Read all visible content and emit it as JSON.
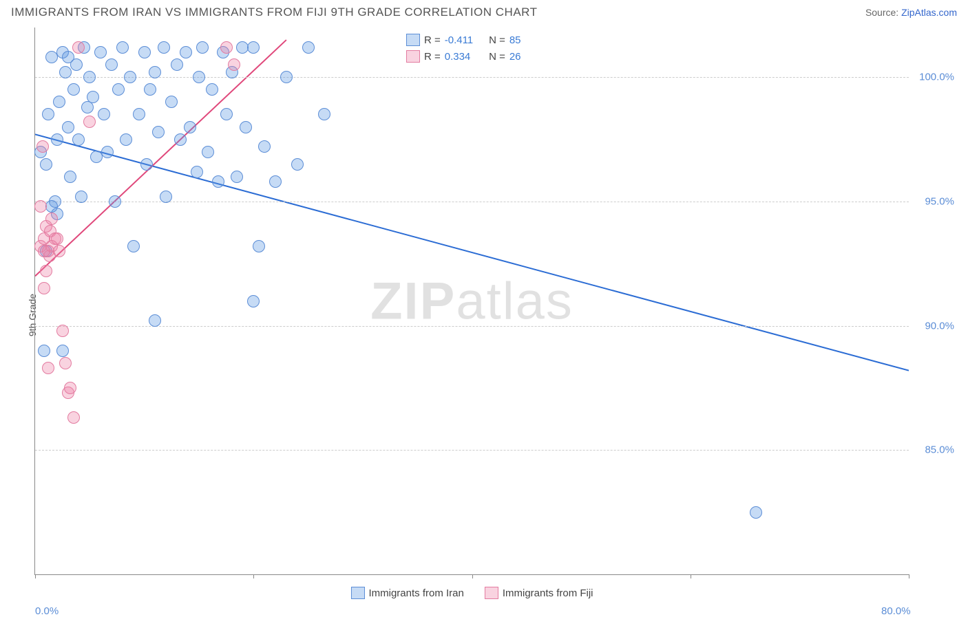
{
  "title": "IMMIGRANTS FROM IRAN VS IMMIGRANTS FROM FIJI 9TH GRADE CORRELATION CHART",
  "source_prefix": "Source: ",
  "source_link": "ZipAtlas.com",
  "ylabel": "9th Grade",
  "watermark_bold": "ZIP",
  "watermark_rest": "atlas",
  "chart": {
    "type": "scatter",
    "xlim": [
      0,
      80
    ],
    "ylim": [
      80,
      102
    ],
    "x_ticks": [
      0,
      20,
      40,
      60,
      80
    ],
    "x_tick_labels": [
      "0.0%",
      "",
      "",
      "",
      "80.0%"
    ],
    "y_gridlines": [
      85,
      90,
      95,
      100
    ],
    "y_tick_labels": [
      "85.0%",
      "90.0%",
      "95.0%",
      "100.0%"
    ],
    "background_color": "#ffffff",
    "grid_color": "#cccccc",
    "axis_color": "#888888",
    "marker_radius": 9,
    "marker_opacity": 0.55,
    "series": [
      {
        "name": "Immigrants from Iran",
        "color_fill": "rgba(93,151,226,0.35)",
        "color_stroke": "#5b8dd6",
        "R": "-0.411",
        "N": "85",
        "regression": {
          "x1": 0,
          "y1": 97.7,
          "x2": 80,
          "y2": 88.2,
          "color": "#2b6cd4",
          "width": 2
        },
        "points": [
          [
            0.5,
            97.0
          ],
          [
            1.0,
            96.5
          ],
          [
            1.2,
            98.5
          ],
          [
            1.5,
            100.8
          ],
          [
            1.8,
            95.0
          ],
          [
            2.0,
            97.5
          ],
          [
            2.2,
            99.0
          ],
          [
            2.5,
            101.0
          ],
          [
            2.8,
            100.2
          ],
          [
            3.0,
            98.0
          ],
          [
            3.2,
            96.0
          ],
          [
            3.5,
            99.5
          ],
          [
            3.8,
            100.5
          ],
          [
            4.0,
            97.5
          ],
          [
            4.2,
            95.2
          ],
          [
            4.5,
            101.2
          ],
          [
            4.8,
            98.8
          ],
          [
            5.0,
            100.0
          ],
          [
            5.3,
            99.2
          ],
          [
            5.6,
            96.8
          ],
          [
            6.0,
            101.0
          ],
          [
            6.3,
            98.5
          ],
          [
            6.6,
            97.0
          ],
          [
            7.0,
            100.5
          ],
          [
            7.3,
            95.0
          ],
          [
            7.6,
            99.5
          ],
          [
            8.0,
            101.2
          ],
          [
            8.3,
            97.5
          ],
          [
            8.7,
            100.0
          ],
          [
            9.0,
            93.2
          ],
          [
            9.5,
            98.5
          ],
          [
            10.0,
            101.0
          ],
          [
            10.2,
            96.5
          ],
          [
            10.5,
            99.5
          ],
          [
            11.0,
            100.2
          ],
          [
            11.3,
            97.8
          ],
          [
            11.8,
            101.2
          ],
          [
            12.0,
            95.2
          ],
          [
            12.5,
            99.0
          ],
          [
            13.0,
            100.5
          ],
          [
            13.3,
            97.5
          ],
          [
            13.8,
            101.0
          ],
          [
            14.2,
            98.0
          ],
          [
            14.8,
            96.2
          ],
          [
            15.0,
            100.0
          ],
          [
            15.3,
            101.2
          ],
          [
            15.8,
            97.0
          ],
          [
            16.2,
            99.5
          ],
          [
            16.8,
            95.8
          ],
          [
            17.2,
            101.0
          ],
          [
            17.5,
            98.5
          ],
          [
            18.0,
            100.2
          ],
          [
            18.5,
            96.0
          ],
          [
            19.0,
            101.2
          ],
          [
            19.3,
            98.0
          ],
          [
            20.0,
            101.2
          ],
          [
            20.5,
            93.2
          ],
          [
            21.0,
            97.2
          ],
          [
            22.0,
            95.8
          ],
          [
            23.0,
            100.0
          ],
          [
            24.0,
            96.5
          ],
          [
            0.8,
            89.0
          ],
          [
            11.0,
            90.2
          ],
          [
            20.0,
            91.0
          ],
          [
            1.0,
            93.0
          ],
          [
            2.0,
            94.5
          ],
          [
            1.5,
            94.8
          ],
          [
            2.5,
            89.0
          ],
          [
            25.0,
            101.2
          ],
          [
            26.5,
            98.5
          ],
          [
            3.0,
            100.8
          ]
        ]
      },
      {
        "name": "Immigrants from Fiji",
        "color_fill": "rgba(238,130,165,0.35)",
        "color_stroke": "#e37ba0",
        "R": "0.334",
        "N": "26",
        "regression": {
          "x1": 0,
          "y1": 92.0,
          "x2": 23,
          "y2": 101.5,
          "color": "#e0487b",
          "width": 2
        },
        "points": [
          [
            0.5,
            93.2
          ],
          [
            0.8,
            93.5
          ],
          [
            1.0,
            94.0
          ],
          [
            1.2,
            93.0
          ],
          [
            1.4,
            93.8
          ],
          [
            1.5,
            94.3
          ],
          [
            1.8,
            93.5
          ],
          [
            1.0,
            92.2
          ],
          [
            0.8,
            91.5
          ],
          [
            1.3,
            92.8
          ],
          [
            1.5,
            93.2
          ],
          [
            2.0,
            93.5
          ],
          [
            2.2,
            93.0
          ],
          [
            2.5,
            89.8
          ],
          [
            2.8,
            88.5
          ],
          [
            3.0,
            87.3
          ],
          [
            3.2,
            87.5
          ],
          [
            3.5,
            86.3
          ],
          [
            1.2,
            88.3
          ],
          [
            4.0,
            101.2
          ],
          [
            5.0,
            98.2
          ],
          [
            17.5,
            101.2
          ],
          [
            18.2,
            100.5
          ],
          [
            0.7,
            97.2
          ],
          [
            0.5,
            94.8
          ],
          [
            0.8,
            93.0
          ]
        ]
      },
      {
        "name": "outlier",
        "color_fill": "rgba(93,151,226,0.35)",
        "color_stroke": "#5b8dd6",
        "points": [
          [
            66.0,
            82.5
          ]
        ],
        "hide_in_legend": true
      }
    ]
  },
  "stats_legend": {
    "rows": [
      {
        "swatch_fill": "rgba(93,151,226,0.35)",
        "swatch_stroke": "#5b8dd6",
        "r_label": "R =",
        "r_val": "-0.411",
        "n_label": "N =",
        "n_val": "85"
      },
      {
        "swatch_fill": "rgba(238,130,165,0.35)",
        "swatch_stroke": "#e37ba0",
        "r_label": "R =",
        "r_val": "0.334",
        "n_label": "N =",
        "n_val": "26"
      }
    ]
  },
  "bottom_legend": [
    {
      "swatch_fill": "rgba(93,151,226,0.35)",
      "swatch_stroke": "#5b8dd6",
      "label": "Immigrants from Iran"
    },
    {
      "swatch_fill": "rgba(238,130,165,0.35)",
      "swatch_stroke": "#e37ba0",
      "label": "Immigrants from Fiji"
    }
  ]
}
